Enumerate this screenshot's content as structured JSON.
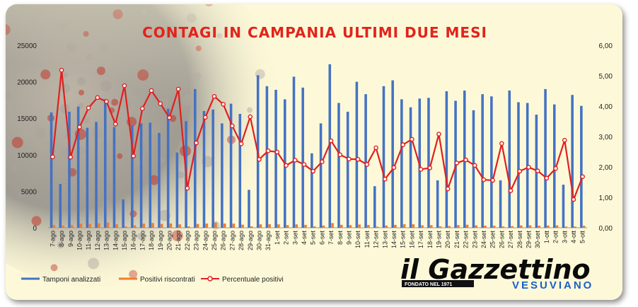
{
  "colors": {
    "bars_tamponi": "#4472c4",
    "bars_positivi": "#ed7d31",
    "line_percent": "#e01f1f",
    "title": "#e2241b",
    "background": "#fdf9d8"
  },
  "logo": {
    "main": "il Gazzettino",
    "tag": "FONDATO NEL 1971",
    "sub": "VESUVIANO"
  },
  "chart_data": {
    "type": "bar",
    "title": "CONTAGI IN CAMPANIA ULTIMI DUE MESI",
    "left_axis": {
      "min": 0,
      "max": 25000,
      "ticks": [
        "0",
        "5000",
        "10000",
        "15000",
        "20000",
        "25000"
      ]
    },
    "right_axis": {
      "min": 0,
      "max": 6,
      "ticks": [
        "0,00",
        "1,00",
        "2,00",
        "3,00",
        "4,00",
        "5,00",
        "6,00"
      ]
    },
    "grid": false,
    "legend_position": "bottom-left",
    "categories": [
      "7-ago",
      "8-ago",
      "9-ago",
      "10-ago",
      "11-ago",
      "12-ago",
      "13-ago",
      "14-ago",
      "15-ago",
      "16-ago",
      "17-ago",
      "18-ago",
      "19-ago",
      "20-ago",
      "21-ago",
      "22-ago",
      "23-ago",
      "24-ago",
      "25-ago",
      "26-ago",
      "27-ago",
      "28-ago",
      "29-ago",
      "30-ago",
      "31-ago",
      "1-set",
      "2-set",
      "3-set",
      "4-set",
      "5-set",
      "6-set",
      "7-set",
      "8-set",
      "9-set",
      "10-set",
      "11-set",
      "12-set",
      "13-set",
      "14-set",
      "15-set",
      "16-set",
      "17-set",
      "18-set",
      "19-set",
      "20-set",
      "21-set",
      "22-set",
      "23-set",
      "24-set",
      "25-set",
      "26-set",
      "27-set",
      "28-set",
      "29-set",
      "30-set",
      "1-ott",
      "2-ott",
      "3-ott",
      "4-ott",
      "5-ott"
    ],
    "series": [
      {
        "name": "Tamponi analizzati",
        "kind": "bar",
        "axis": "left",
        "values": [
          15800,
          6000,
          15900,
          16600,
          13700,
          14500,
          17600,
          13800,
          3900,
          14000,
          14300,
          14400,
          13000,
          16300,
          10300,
          14600,
          19000,
          16000,
          16200,
          14300,
          17000,
          15600,
          5200,
          20900,
          19400,
          18900,
          17600,
          20700,
          19200,
          10200,
          14300,
          22400,
          17100,
          15900,
          20000,
          18300,
          5700,
          19400,
          20200,
          17600,
          16500,
          17700,
          17800,
          6500,
          18700,
          17400,
          18800,
          16100,
          18300,
          18000,
          6500,
          18800,
          17200,
          17100,
          15500,
          19000,
          16900,
          5900,
          18200,
          16700
        ]
      },
      {
        "name": "Positivi riscontrati",
        "kind": "bar",
        "axis": "left",
        "values": [
          370,
          310,
          370,
          550,
          540,
          620,
          730,
          470,
          180,
          330,
          560,
          650,
          530,
          590,
          470,
          190,
          530,
          580,
          700,
          580,
          570,
          430,
          190,
          470,
          490,
          470,
          360,
          460,
          400,
          190,
          310,
          640,
          410,
          360,
          450,
          380,
          150,
          310,
          400,
          480,
          480,
          340,
          350,
          200,
          240,
          370,
          420,
          330,
          290,
          280,
          180,
          230,
          320,
          340,
          290,
          310,
          330,
          170,
          170,
          280
        ]
      },
      {
        "name": "Percentuale positivi",
        "kind": "line",
        "axis": "right",
        "values": [
          2.33,
          5.18,
          2.32,
          3.31,
          3.94,
          4.28,
          4.15,
          3.41,
          4.67,
          2.36,
          3.92,
          4.51,
          4.08,
          3.62,
          4.56,
          1.3,
          2.79,
          3.63,
          4.32,
          4.06,
          3.35,
          2.76,
          3.65,
          2.25,
          2.53,
          2.49,
          2.05,
          2.22,
          2.08,
          1.86,
          2.17,
          2.86,
          2.4,
          2.26,
          2.25,
          2.08,
          2.63,
          1.6,
          1.98,
          2.73,
          2.91,
          1.92,
          1.97,
          3.08,
          1.28,
          2.13,
          2.23,
          2.05,
          1.58,
          1.56,
          2.77,
          1.22,
          1.86,
          1.99,
          1.87,
          1.63,
          1.95,
          2.88,
          0.93,
          1.68
        ]
      }
    ]
  }
}
